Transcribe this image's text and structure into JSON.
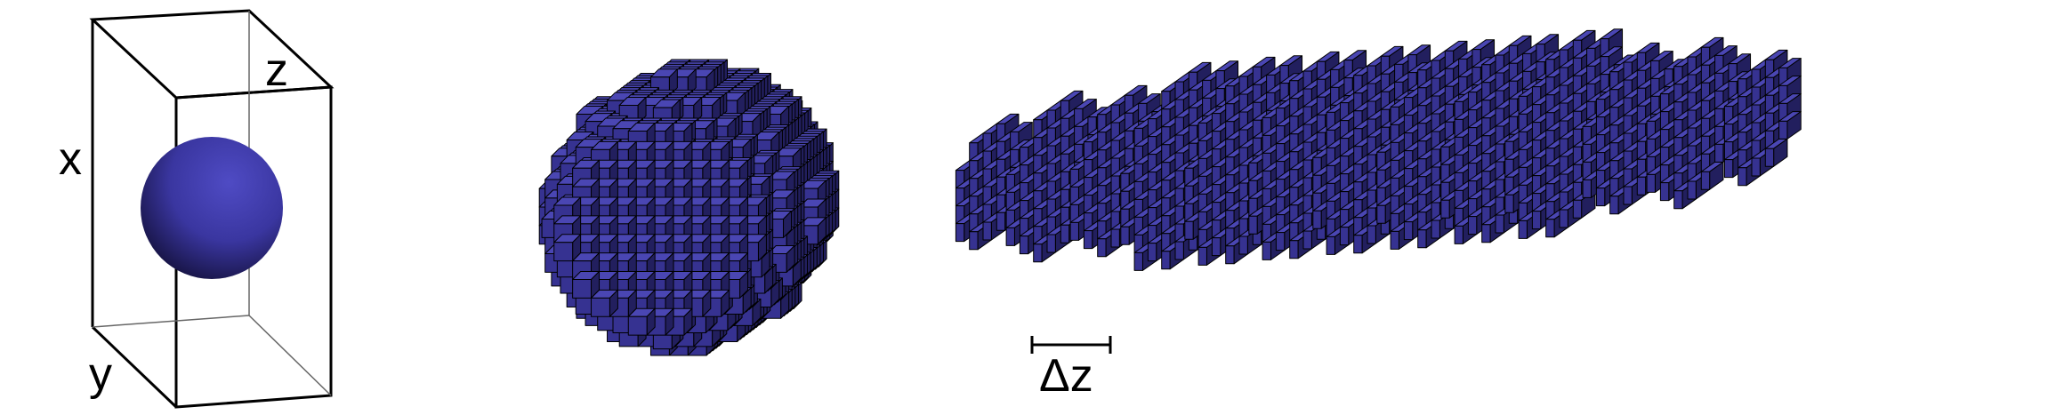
{
  "panel_box": {
    "axis_labels": {
      "x": "x",
      "y": "y",
      "z": "z"
    }
  },
  "panel_stack": {
    "spacing_label": "Δz"
  },
  "colors": {
    "voxel_front": "#363291",
    "voxel_top": "#4a46b3",
    "voxel_side": "#221f5e",
    "sphere_light": "#4f4bc4",
    "sphere_dark": "#15123f",
    "line": "#000000"
  },
  "icons": [
    "sphere-icon",
    "voxel-sphere-icon",
    "voxel-slices-icon"
  ]
}
